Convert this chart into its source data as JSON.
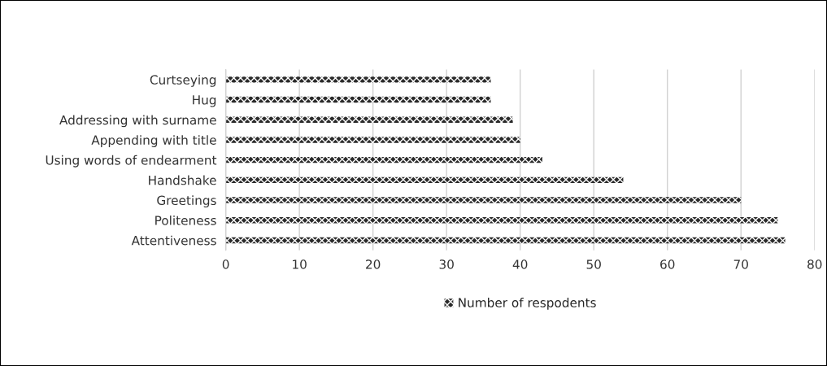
{
  "chart_data": {
    "type": "bar",
    "orientation": "horizontal",
    "categories": [
      "Curtseying",
      "Hug",
      "Addressing with surname",
      "Appending with title",
      "Using words of endearment",
      "Handshake",
      "Greetings",
      "Politeness",
      "Attentiveness"
    ],
    "series": [
      {
        "name": "Number of respodents",
        "color": "#2a2a2a",
        "values": [
          36,
          36,
          39,
          40,
          43,
          54,
          70,
          75,
          76
        ]
      }
    ],
    "xlim": [
      0,
      80
    ],
    "xticks": [
      0,
      10,
      20,
      30,
      40,
      50,
      60,
      70,
      80
    ],
    "grid": "x",
    "legend": "bottom"
  }
}
